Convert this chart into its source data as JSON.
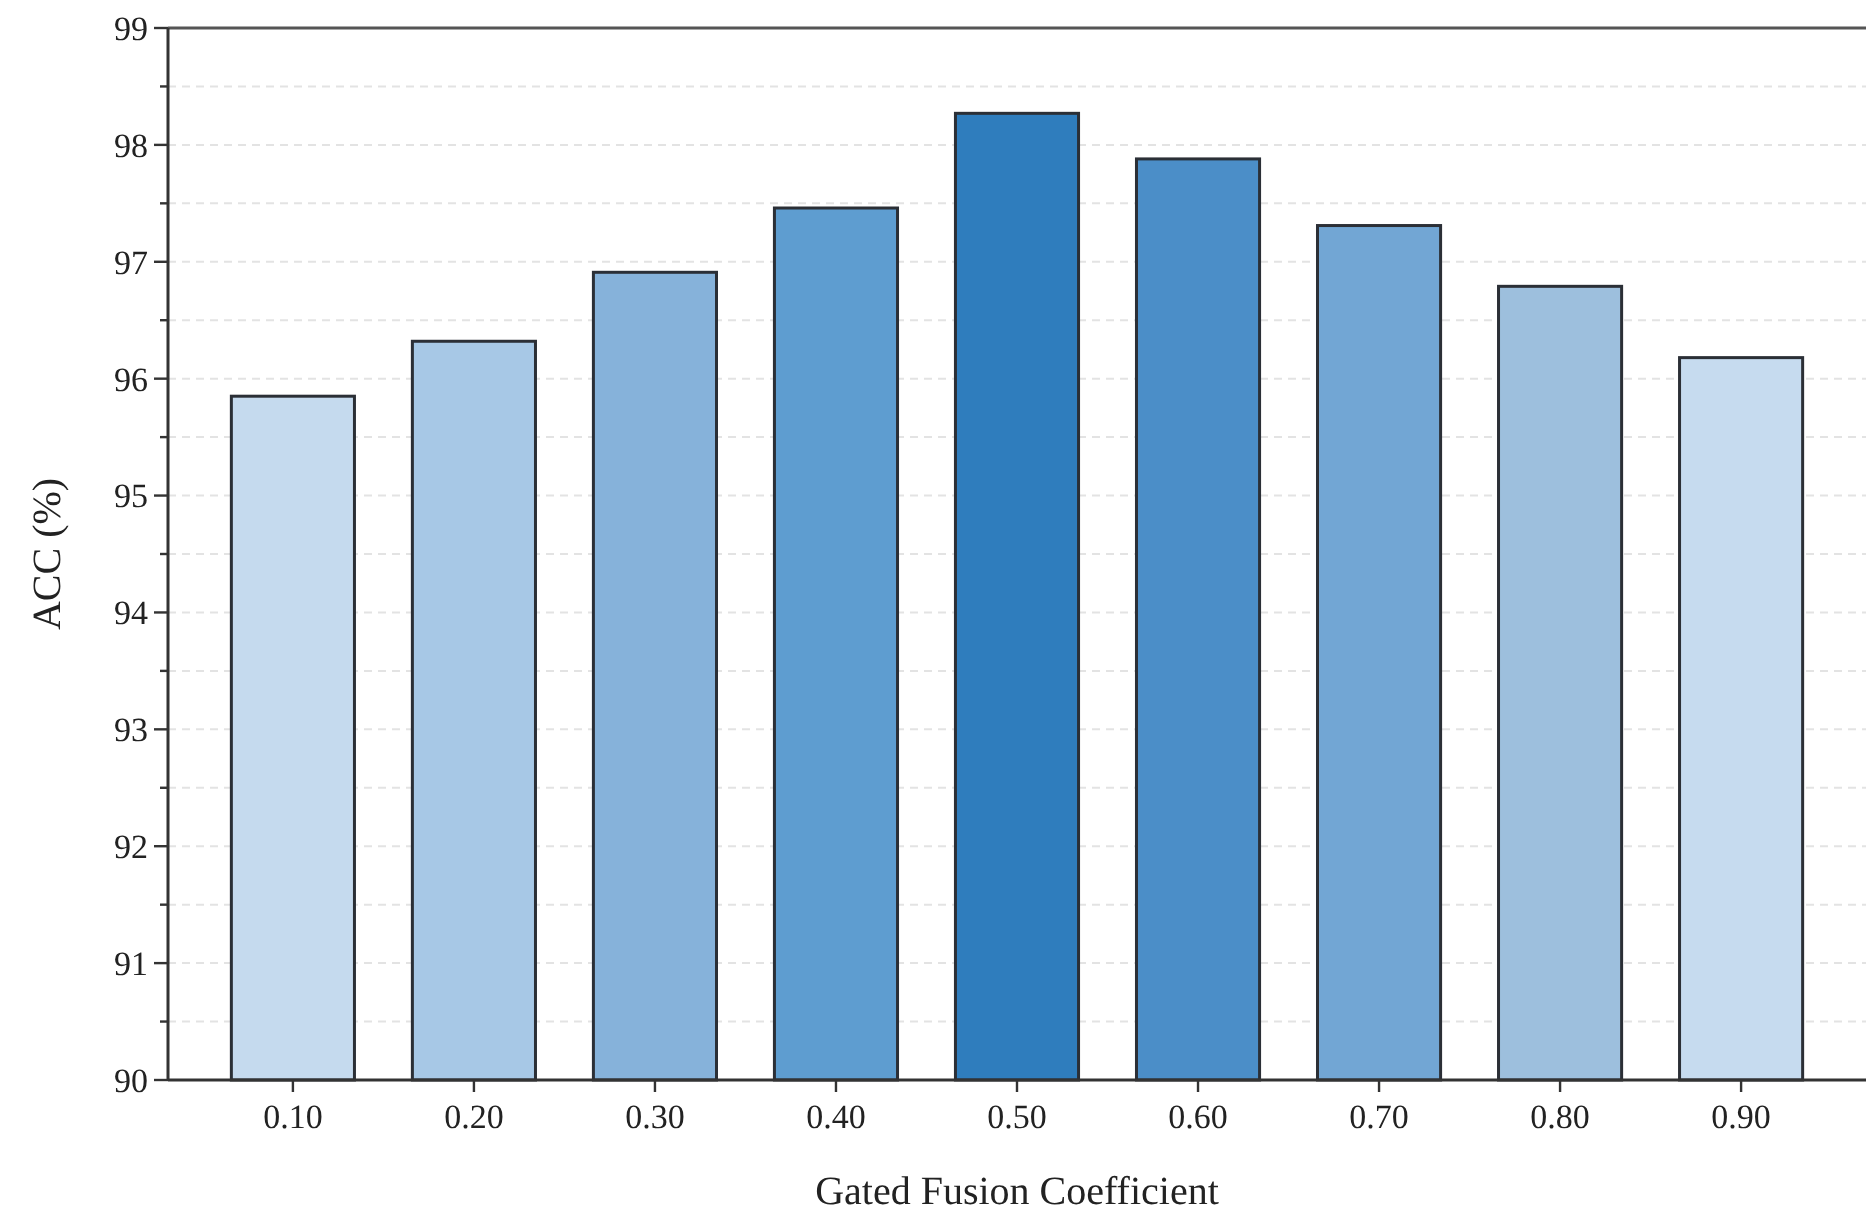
{
  "chart_data": {
    "type": "bar",
    "xlabel": "Gated Fusion Coefficient",
    "ylabel": "ACC (%)",
    "categories": [
      "0.10",
      "0.20",
      "0.30",
      "0.40",
      "0.50",
      "0.60",
      "0.70",
      "0.80",
      "0.90"
    ],
    "values": [
      95.85,
      96.32,
      96.91,
      97.46,
      98.27,
      97.88,
      97.31,
      96.79,
      96.18
    ],
    "colors": [
      "#c5daee",
      "#a7c8e6",
      "#86b2da",
      "#5e9dd0",
      "#2f7dbd",
      "#4b8ec8",
      "#72a6d4",
      "#9dbfdd",
      "#c6dbef"
    ],
    "ylim": [
      90,
      99
    ],
    "yticks": [
      90,
      {
        "value": 90.5,
        "label": null
      },
      91,
      {
        "value": 91.5,
        "label": null
      },
      92,
      {
        "value": 92.5,
        "label": null
      },
      93,
      {
        "value": 93.5,
        "label": null
      },
      94,
      {
        "value": 94.5,
        "label": null
      },
      95,
      {
        "value": 95.5,
        "label": null
      },
      96,
      {
        "value": 96.5,
        "label": null
      },
      97,
      {
        "value": 97.5,
        "label": null
      },
      98,
      {
        "value": 98.5,
        "label": null
      },
      99
    ],
    "grid": "y"
  }
}
